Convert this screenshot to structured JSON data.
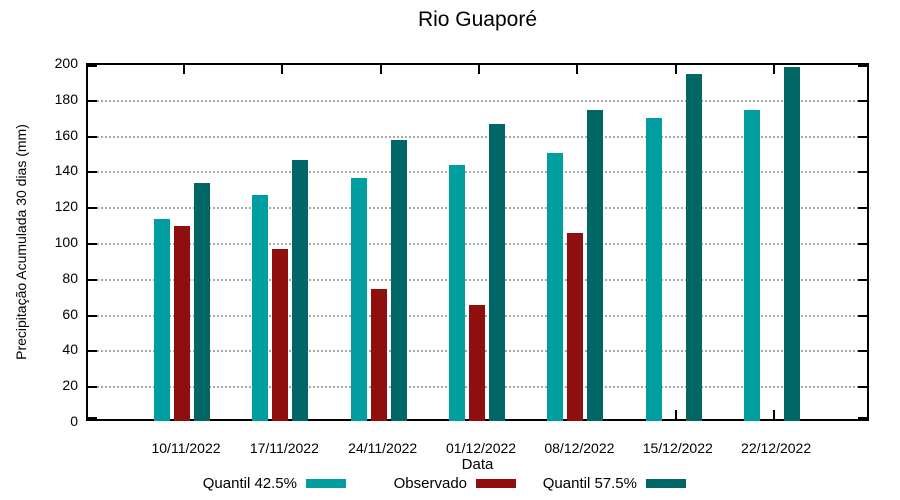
{
  "title": "Rio Guaporé",
  "chart_data": {
    "type": "bar",
    "title": "Rio Guaporé",
    "xlabel": "Data",
    "ylabel": "Precipitação Acumulada 30 dias (mm)",
    "ylim": [
      0,
      200
    ],
    "yticks": [
      0,
      20,
      40,
      60,
      80,
      100,
      120,
      140,
      160,
      180,
      200
    ],
    "grid": true,
    "legend_position": "bottom",
    "categories": [
      "10/11/2022",
      "17/11/2022",
      "24/11/2022",
      "01/12/2022",
      "08/12/2022",
      "15/12/2022",
      "22/12/2022"
    ],
    "series": [
      {
        "name": "Quantil 42.5%",
        "color": "#009E9E",
        "values": [
          113,
          126,
          136,
          143,
          150,
          169,
          174
        ]
      },
      {
        "name": "Observado",
        "color": "#8F0F0F",
        "values": [
          109,
          96,
          74,
          65,
          105,
          null,
          null
        ]
      },
      {
        "name": "Quantil 57.5%",
        "color": "#006666",
        "values": [
          133,
          146,
          157,
          166,
          174,
          194,
          198
        ]
      }
    ]
  }
}
